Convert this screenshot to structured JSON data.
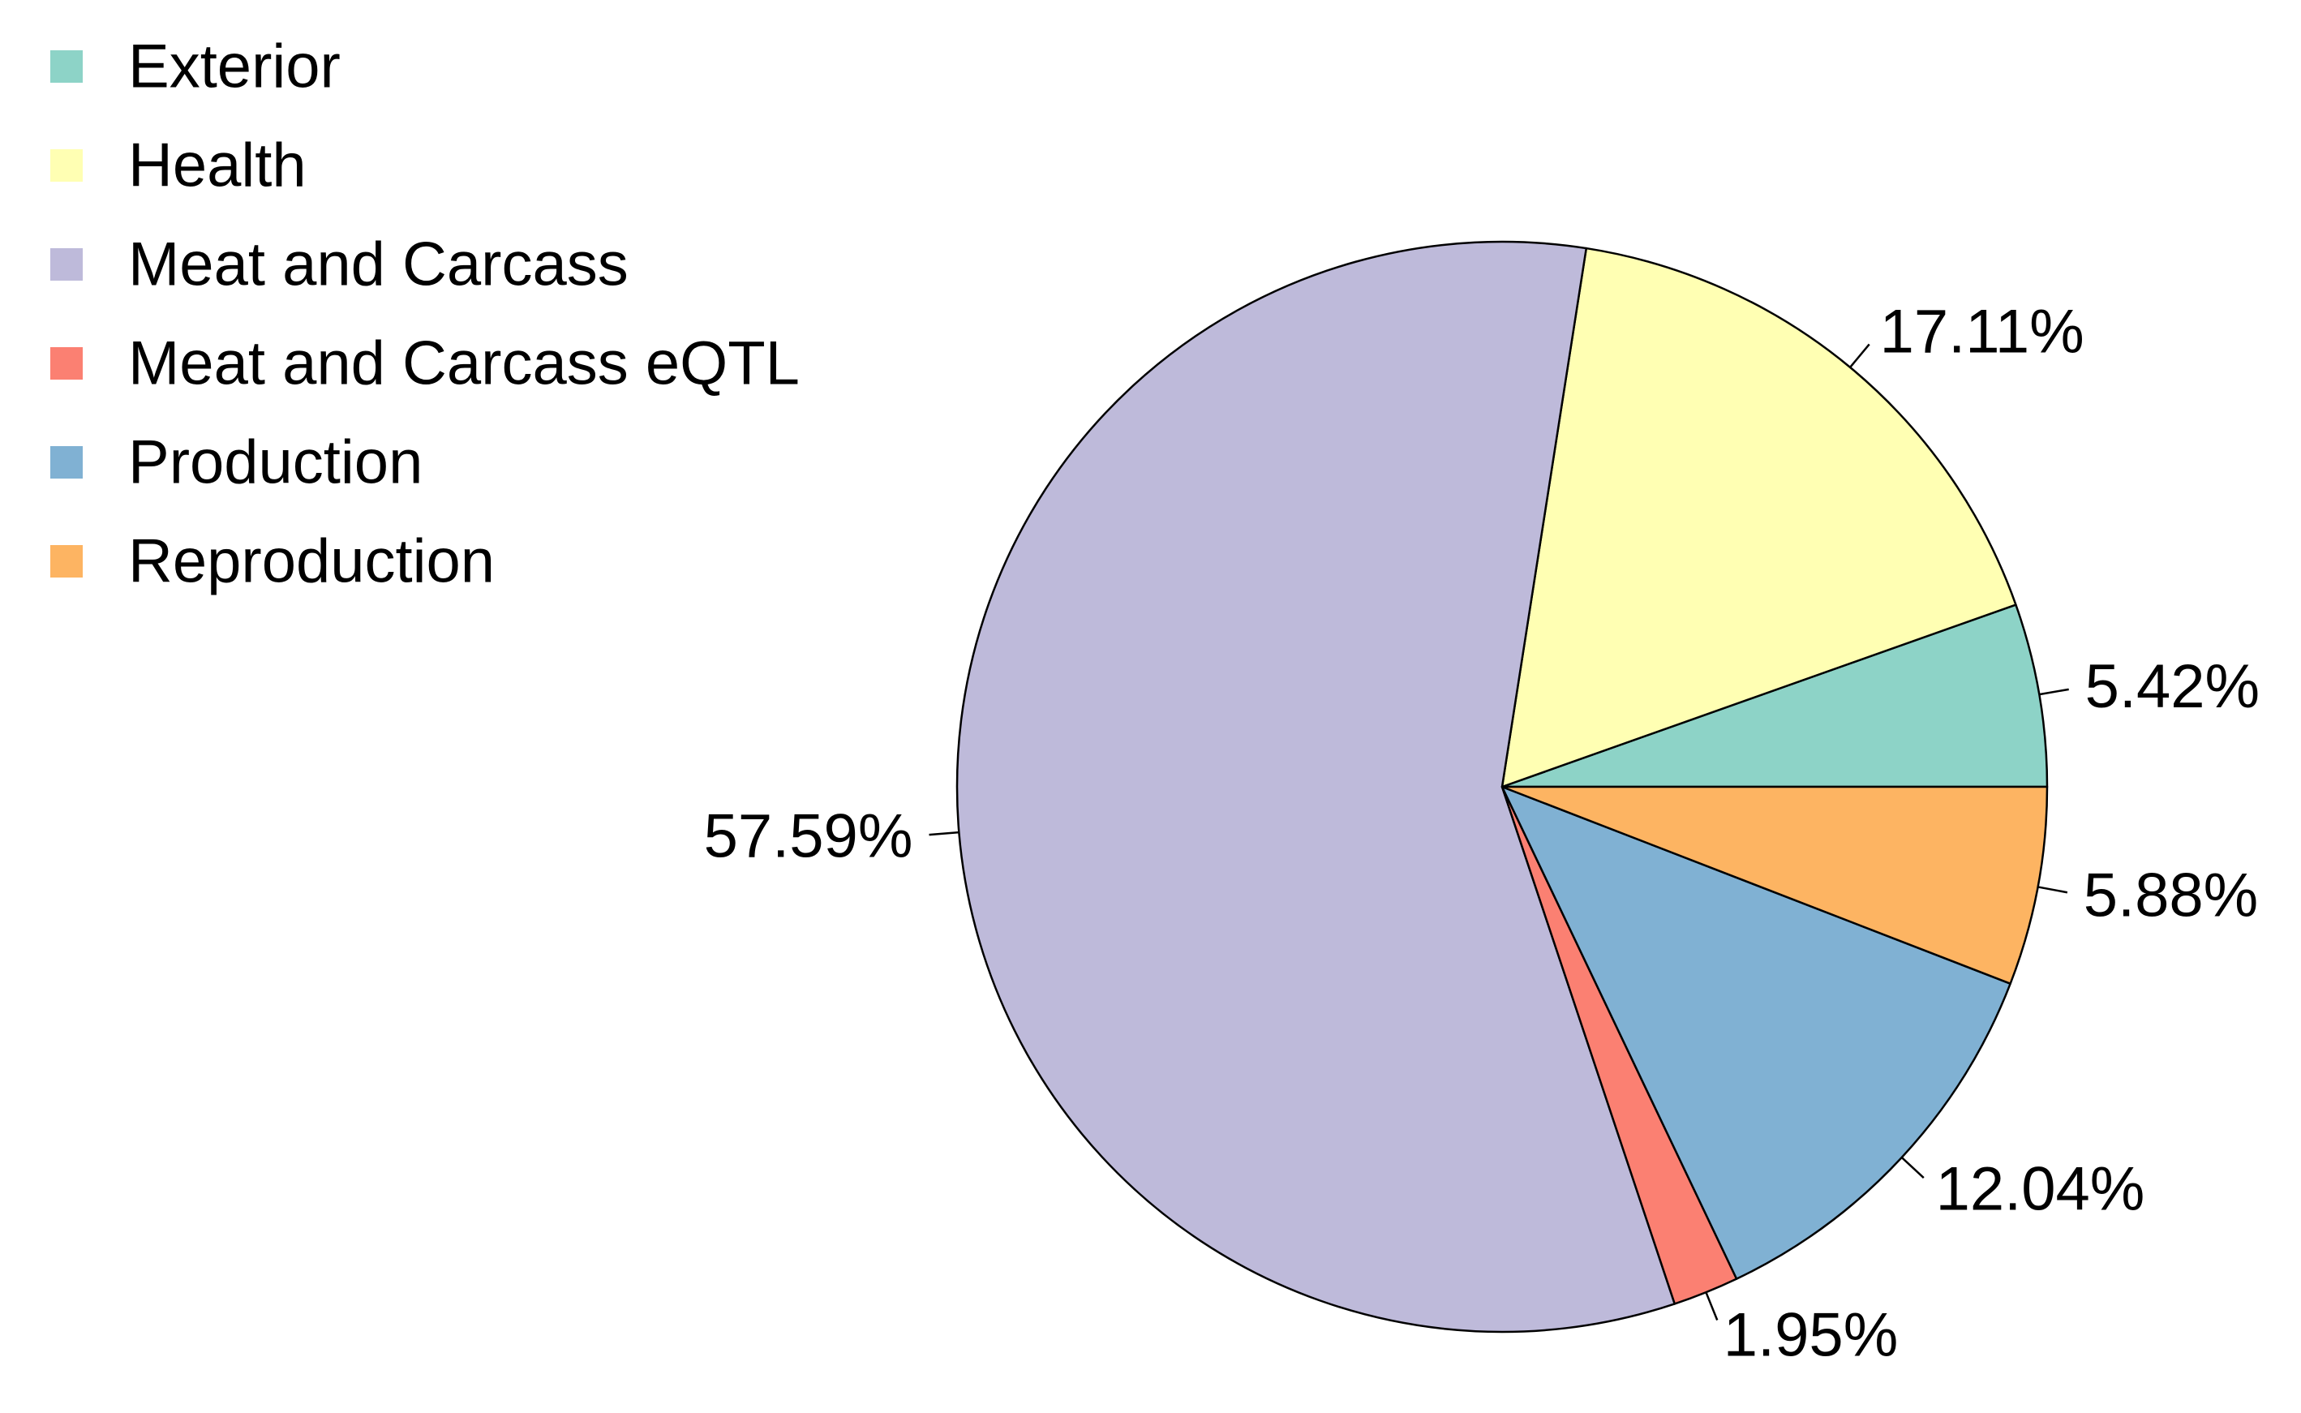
{
  "chart_data": {
    "type": "pie",
    "categories": [
      "Exterior",
      "Health",
      "Meat and Carcass",
      "Meat and Carcass eQTL",
      "Production",
      "Reproduction"
    ],
    "values": [
      5.42,
      17.11,
      57.59,
      1.95,
      12.04,
      5.88
    ],
    "labels": [
      "5.42%",
      "17.11%",
      "57.59%",
      "1.95%",
      "12.04%",
      "5.88%"
    ],
    "colors": [
      "#8DD3C7",
      "#FFFFB3",
      "#BEBADA",
      "#FB8072",
      "#80B1D3",
      "#FDB462"
    ],
    "title": "",
    "legend_position": "top-left",
    "direction": "counterclockwise",
    "start": "right"
  }
}
